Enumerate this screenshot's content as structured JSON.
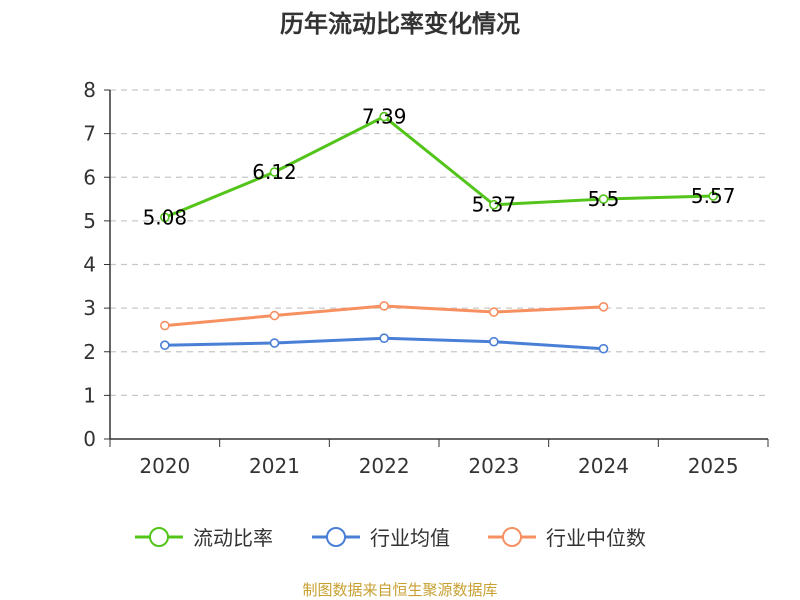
{
  "chart_data": {
    "type": "line",
    "title": "历年流动比率变化情况",
    "categories": [
      "2020",
      "2021",
      "2022",
      "2023",
      "2024",
      "2025"
    ],
    "y_ticks": [
      "0",
      "1",
      "2",
      "3",
      "4",
      "5",
      "6",
      "7",
      "8"
    ],
    "ylim": [
      0,
      8
    ],
    "grid": true,
    "legend_position": "bottom",
    "series": [
      {
        "name": "流动比率",
        "color": "#52c41a",
        "values": [
          5.08,
          6.12,
          7.39,
          5.37,
          5.5,
          5.57
        ],
        "labels": [
          "5.08",
          "6.12",
          "7.39",
          "5.37",
          "5.5",
          "5.57"
        ]
      },
      {
        "name": "行业均值",
        "color": "#4a7fd6",
        "values": [
          2.15,
          2.2,
          2.31,
          2.23,
          2.07,
          null
        ]
      },
      {
        "name": "行业中位数",
        "color": "#f79060",
        "values": [
          2.6,
          2.83,
          3.05,
          2.91,
          3.03,
          null
        ]
      }
    ],
    "source": "制图数据来自恒生聚源数据库"
  }
}
